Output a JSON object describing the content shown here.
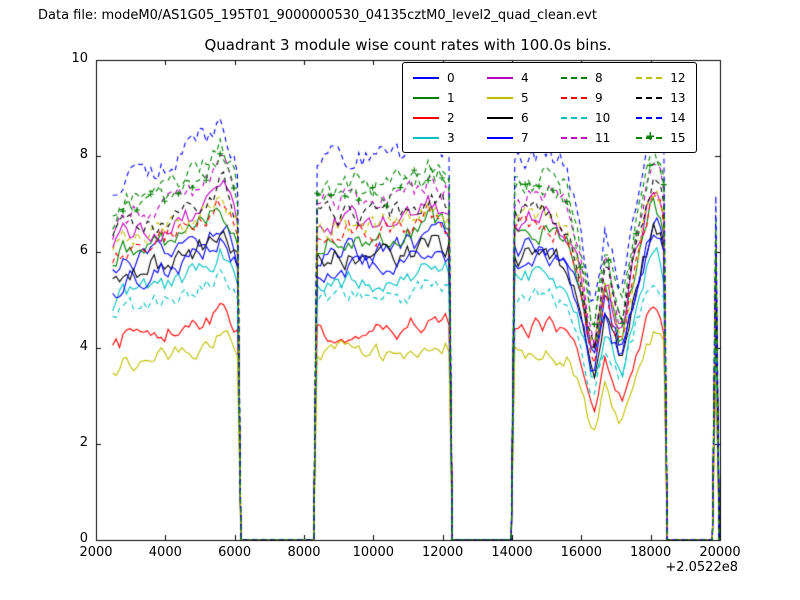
{
  "header": {
    "data_file": "Data file: modeM0/AS1G05_195T01_9000000530_04135cztM0_level2_quad_clean.evt"
  },
  "chart_data": {
    "type": "line",
    "title": "Quadrant 3 module wise count rates with 100.0s bins.",
    "xlabel": "",
    "ylabel": "",
    "xlim": [
      2000,
      20000
    ],
    "ylim": [
      0,
      10
    ],
    "x_offset_label": "+2.0522e8",
    "x_ticks": [
      2000,
      4000,
      6000,
      8000,
      10000,
      12000,
      14000,
      16000,
      18000,
      20000
    ],
    "y_ticks": [
      0,
      2,
      4,
      6,
      8,
      10
    ],
    "bin_seconds": 100,
    "grid": false,
    "legend": {
      "columns": 4,
      "location": "upper center-right"
    },
    "segments": [
      [
        2480,
        6100
      ],
      [
        8300,
        12230
      ],
      [
        14080,
        18400
      ],
      [
        19880,
        19950
      ]
    ],
    "envelope_keyframes": [
      [
        2480,
        0.9
      ],
      [
        2800,
        0.95
      ],
      [
        3600,
        0.97
      ],
      [
        4600,
        1.0
      ],
      [
        5200,
        1.05
      ],
      [
        5600,
        1.1
      ],
      [
        5900,
        1.04
      ],
      [
        6100,
        0.98
      ],
      [
        8300,
        0.98
      ],
      [
        9000,
        1.0
      ],
      [
        10000,
        0.99
      ],
      [
        11000,
        1.01
      ],
      [
        11600,
        1.05
      ],
      [
        12230,
        1.03
      ],
      [
        14080,
        1.0
      ],
      [
        15000,
        1.02
      ],
      [
        15600,
        0.97
      ],
      [
        16000,
        0.8
      ],
      [
        16350,
        0.58
      ],
      [
        16700,
        0.82
      ],
      [
        17150,
        0.63
      ],
      [
        17600,
        0.9
      ],
      [
        18050,
        1.1
      ],
      [
        18250,
        1.08
      ],
      [
        18400,
        1.0
      ],
      [
        19880,
        0.9
      ],
      [
        19950,
        0.95
      ]
    ],
    "series": [
      {
        "name": "0",
        "color": "#0000ff",
        "style": "solid",
        "marker": "",
        "level": 6.05,
        "noise": 0.2
      },
      {
        "name": "1",
        "color": "#008000",
        "style": "solid",
        "marker": "",
        "level": 6.35,
        "noise": 0.2
      },
      {
        "name": "2",
        "color": "#ff0000",
        "style": "solid",
        "marker": "",
        "level": 4.4,
        "noise": 0.18
      },
      {
        "name": "3",
        "color": "#00bfbf",
        "style": "solid",
        "marker": "",
        "level": 5.45,
        "noise": 0.18
      },
      {
        "name": "4",
        "color": "#bf00bf",
        "style": "solid",
        "marker": "",
        "level": 6.7,
        "noise": 0.22
      },
      {
        "name": "5",
        "color": "#bfbf00",
        "style": "solid",
        "marker": "",
        "level": 3.9,
        "noise": 0.16
      },
      {
        "name": "6",
        "color": "#000000",
        "style": "solid",
        "marker": "",
        "level": 5.9,
        "noise": 0.22
      },
      {
        "name": "7",
        "color": "#0000ff",
        "style": "solid",
        "marker": "",
        "level": 5.75,
        "noise": 0.2
      },
      {
        "name": "8",
        "color": "#008000",
        "style": "dashed",
        "marker": "",
        "level": 7.45,
        "noise": 0.22
      },
      {
        "name": "9",
        "color": "#ff0000",
        "style": "dashed",
        "marker": "",
        "level": 6.45,
        "noise": 0.2
      },
      {
        "name": "10",
        "color": "#00bfbf",
        "style": "dashed",
        "marker": "",
        "level": 5.05,
        "noise": 0.18
      },
      {
        "name": "11",
        "color": "#bf00bf",
        "style": "dashed",
        "marker": "",
        "level": 7.1,
        "noise": 0.22
      },
      {
        "name": "12",
        "color": "#bfbf00",
        "style": "dashed",
        "marker": "",
        "level": 6.6,
        "noise": 0.2
      },
      {
        "name": "13",
        "color": "#000000",
        "style": "dashed",
        "marker": "",
        "level": 6.8,
        "noise": 0.22
      },
      {
        "name": "14",
        "color": "#0000ff",
        "style": "dashed",
        "marker": "",
        "level": 8.0,
        "noise": 0.26
      },
      {
        "name": "15",
        "color": "#008000",
        "style": "dashed",
        "marker": "+",
        "level": 7.25,
        "noise": 0.22
      }
    ]
  }
}
